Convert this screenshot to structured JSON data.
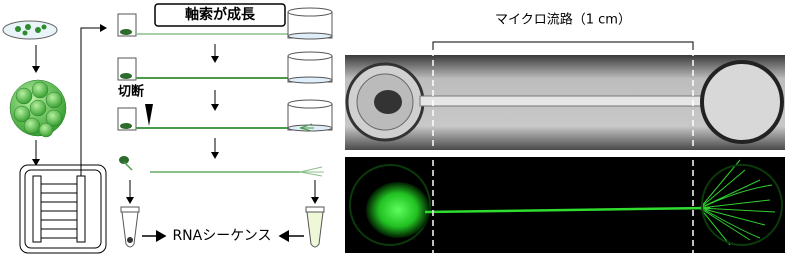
{
  "labels": {
    "axon_growth": "軸索が成長",
    "cut": "切断",
    "microchannel": "マイクロ流路（1 cm）",
    "rna_seq": "RNAシーケンス"
  }
}
